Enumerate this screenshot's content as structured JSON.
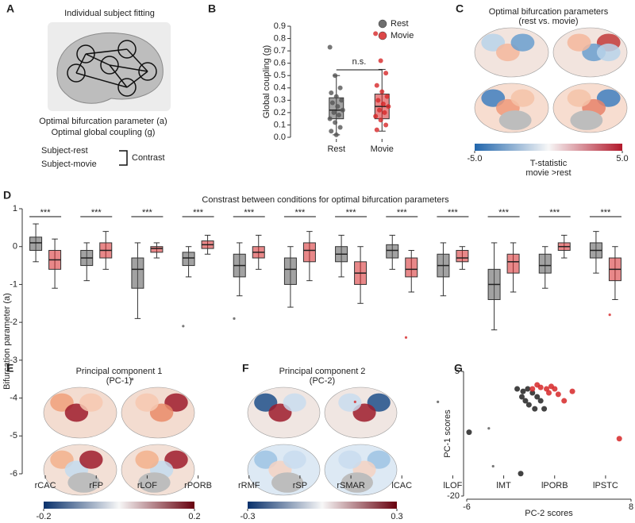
{
  "panel_labels": [
    "A",
    "B",
    "C",
    "D",
    "E",
    "F",
    "G"
  ],
  "panel_a": {
    "title": "Individual subject fitting",
    "outputs": [
      "Optimal bifurcation parameter (a)",
      "Optimal global coupling (g)"
    ],
    "conditions": [
      "Subject-rest",
      "Subject-movie"
    ],
    "contrast": "Contrast"
  },
  "chart_data": [
    {
      "type": "box",
      "ylabel": "Global coupling (g)",
      "categories": [
        "Rest",
        "Movie"
      ],
      "annotation": "n.s.",
      "ylim": [
        0,
        0.9
      ],
      "yticks": [
        {
          "value": 0,
          "label": "0.0"
        },
        0.1,
        0.2,
        0.3,
        0.4,
        0.5,
        0.6,
        0.7,
        0.8,
        0.9
      ],
      "series": [
        {
          "name": "Rest",
          "color": "#555555",
          "q1": 0.15,
          "median": 0.22,
          "q3": 0.32,
          "whislo": 0.02,
          "whishi": 0.5,
          "points": [
            0.73,
            0.5,
            0.4,
            0.36,
            0.33,
            0.3,
            0.28,
            0.25,
            0.22,
            0.2,
            0.18,
            0.15,
            0.12,
            0.08,
            0.05,
            0.02
          ]
        },
        {
          "name": "Movie",
          "color": "#d62728",
          "q1": 0.15,
          "median": 0.25,
          "q3": 0.35,
          "whislo": 0.05,
          "whishi": 0.55,
          "points": [
            0.84,
            0.62,
            0.52,
            0.42,
            0.37,
            0.33,
            0.3,
            0.27,
            0.25,
            0.22,
            0.2,
            0.17,
            0.14,
            0.1,
            0.06
          ]
        }
      ]
    },
    {
      "type": "colorbar",
      "title": "Optimal bifurcation parameters",
      "subtitle": "(rest vs. movie)",
      "label": [
        "T-statistic",
        "movie >rest"
      ],
      "colors": [
        "#2166ac",
        "#f7f7f7",
        "#b2182b"
      ],
      "xlim": [
        -5,
        5
      ],
      "xticks": [
        {
          "value": -5,
          "label": "-5.0"
        },
        {
          "value": 5,
          "label": "5.0"
        }
      ]
    },
    {
      "type": "box",
      "title": "Constrast between conditions for optimal bifurcation parameters",
      "ylabel": "Bifurcation parameter (a)",
      "categories": [
        "rCAC",
        "rFP",
        "rLOF",
        "rPORB",
        "rRMF",
        "rSP",
        "rSMAR",
        "lCAC",
        "lLOF",
        "lMT",
        "lPORB",
        "lPSTC"
      ],
      "annotations": [
        "***",
        "***",
        "***",
        "***",
        "***",
        "***",
        "***",
        "***",
        "***",
        "***",
        "***",
        "***"
      ],
      "ylim": [
        -6,
        1
      ],
      "yticks": [
        -6,
        -5,
        -4,
        -3,
        -2,
        -1,
        0,
        1
      ],
      "series": [
        {
          "name": "Rest",
          "color": "#555555",
          "q1": [
            -0.1,
            -0.5,
            -1.1,
            -0.5,
            -0.8,
            -1.0,
            -0.4,
            -0.3,
            -0.8,
            -1.4,
            -0.7,
            -0.3
          ],
          "median": [
            0.1,
            -0.3,
            -0.6,
            -0.3,
            -0.5,
            -0.6,
            -0.2,
            -0.1,
            -0.5,
            -1.0,
            -0.5,
            -0.1
          ],
          "q3": [
            0.25,
            -0.1,
            -0.3,
            -0.15,
            -0.2,
            -0.3,
            0.0,
            0.05,
            -0.2,
            -0.6,
            -0.2,
            0.1
          ],
          "whislo": [
            -0.4,
            -0.9,
            -1.9,
            -0.8,
            -1.3,
            -1.6,
            -0.8,
            -0.6,
            -1.3,
            -2.2,
            -1.1,
            -0.7
          ],
          "whishi": [
            0.6,
            0.1,
            0.1,
            0.0,
            0.1,
            0.0,
            0.3,
            0.3,
            0.1,
            0.1,
            0.0,
            0.4
          ],
          "outliers": [
            [],
            [],
            [
              -3.5
            ],
            [
              -2.1
            ],
            [
              -1.9
            ],
            [],
            [],
            [],
            [
              -4.1
            ],
            [
              -4.8,
              -5.8
            ],
            [],
            []
          ]
        },
        {
          "name": "Movie",
          "color": "#d62728",
          "q1": [
            -0.6,
            -0.3,
            -0.15,
            -0.05,
            -0.3,
            -0.4,
            -1.0,
            -0.8,
            -0.4,
            -0.7,
            -0.1,
            -0.9
          ],
          "median": [
            -0.35,
            -0.1,
            -0.05,
            0.05,
            -0.15,
            -0.1,
            -0.7,
            -0.6,
            -0.3,
            -0.4,
            0.0,
            -0.6
          ],
          "q3": [
            -0.1,
            0.1,
            0.0,
            0.15,
            0.0,
            0.1,
            -0.4,
            -0.3,
            -0.1,
            -0.2,
            0.1,
            -0.3
          ],
          "whislo": [
            -1.1,
            -0.6,
            -0.3,
            -0.2,
            -0.6,
            -0.9,
            -1.5,
            -1.2,
            -0.6,
            -1.2,
            -0.3,
            -1.4
          ],
          "whishi": [
            0.2,
            0.4,
            0.1,
            0.3,
            0.3,
            0.4,
            0.0,
            -0.1,
            0.0,
            0.1,
            0.3,
            0.0
          ],
          "outliers": [
            [],
            [],
            [],
            [],
            [],
            [],
            [
              -4.1
            ],
            [
              -2.4
            ],
            [],
            [],
            [],
            [
              -1.8
            ]
          ]
        }
      ]
    },
    {
      "type": "colorbar",
      "title": "Principal component 1",
      "subtitle": "(PC-1)",
      "colors": [
        "#08306b",
        "#f7f7f7",
        "#67000d"
      ],
      "xlim": [
        -0.2,
        0.2
      ],
      "xticks": [
        -0.2,
        0.2
      ]
    },
    {
      "type": "colorbar",
      "title": "Principal component 2",
      "subtitle": "(PC-2)",
      "colors": [
        "#08306b",
        "#f7f7f7",
        "#67000d"
      ],
      "xlim": [
        -0.3,
        0.3
      ],
      "xticks": [
        -0.3,
        0.3
      ]
    },
    {
      "type": "scatter",
      "xlabel": "PC-2 scores",
      "ylabel": "PC-1 scores",
      "xlim": [
        -6,
        8
      ],
      "ylim": [
        -20,
        5
      ],
      "xticks": [
        -6,
        8
      ],
      "yticks": [
        5,
        -20
      ],
      "series": [
        {
          "name": "Rest",
          "color": "#222222",
          "x": [
            -5.8,
            -1.4,
            -1.7,
            -1.2,
            -0.8,
            -0.4,
            0.0,
            0.3,
            -0.7,
            0.6,
            -1.3,
            -0.2,
            -1.0
          ],
          "y": [
            -7.2,
            -15.5,
            1.5,
            1.0,
            1.5,
            0.7,
            -0.1,
            -0.9,
            -1.7,
            -2.5,
            -0.1,
            -2.5,
            -0.9
          ]
        },
        {
          "name": "Movie",
          "color": "#d62728",
          "x": [
            7.0,
            3.0,
            2.3,
            1.5,
            0.8,
            0.3,
            1.0,
            -0.4,
            1.8,
            0.0,
            1.2
          ],
          "y": [
            -8.5,
            1.0,
            -0.9,
            1.5,
            1.5,
            1.8,
            0.7,
            1.5,
            0.4,
            2.3,
            2.0
          ]
        }
      ]
    }
  ]
}
